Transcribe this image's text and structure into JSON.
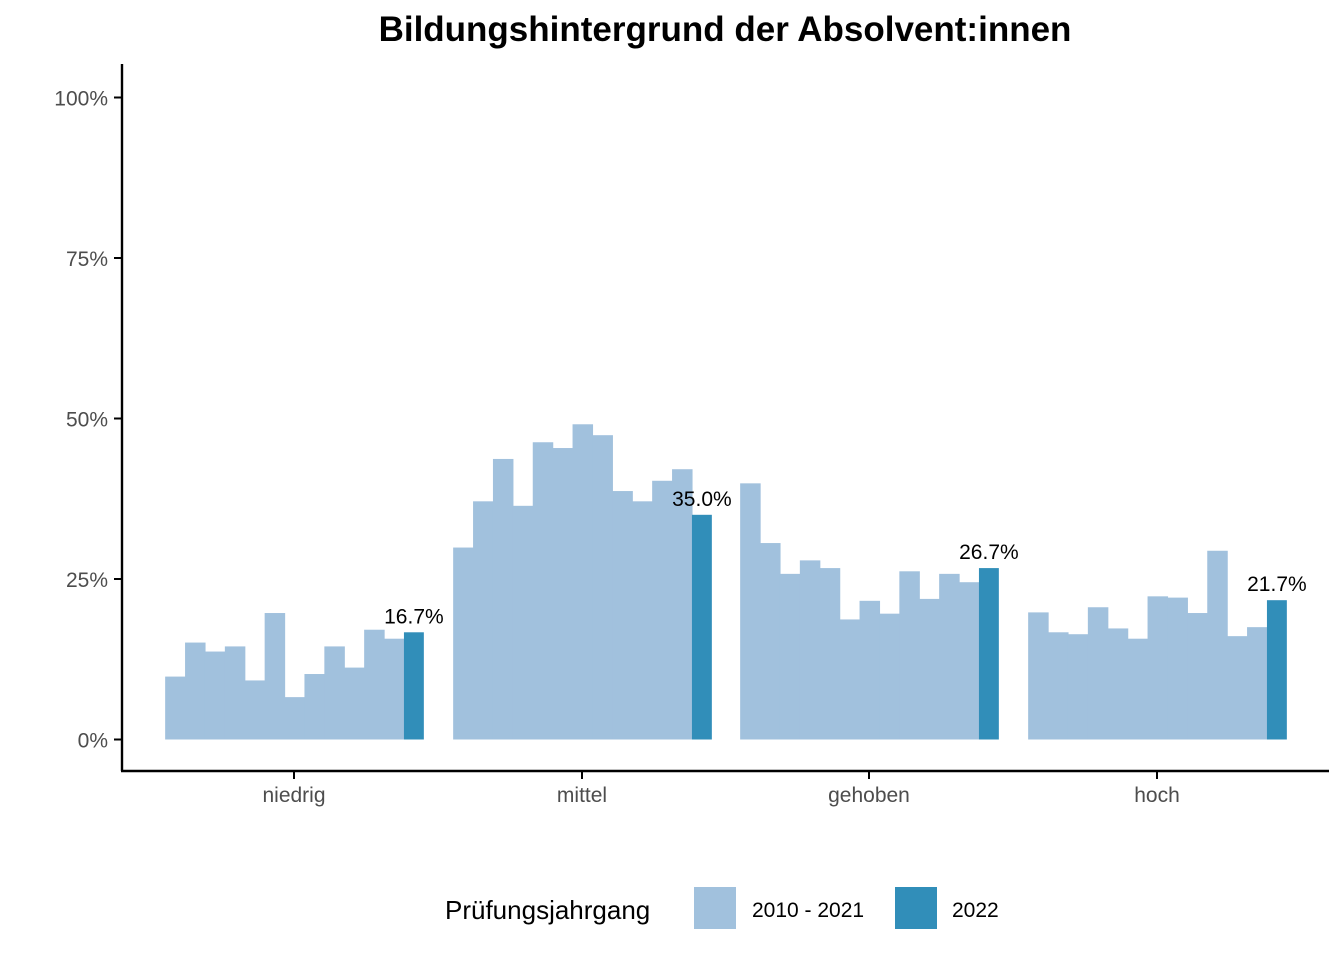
{
  "chart_data": {
    "type": "bar",
    "title": "Bildungshintergrund der Absolvent:innen",
    "xlabel": "",
    "ylabel": "",
    "categories": [
      "niedrig",
      "mittel",
      "gehoben",
      "hoch"
    ],
    "ylim": [
      0,
      1
    ],
    "yticks": [
      {
        "value": 0,
        "label": "0%"
      },
      {
        "value": 0.25,
        "label": "25%"
      },
      {
        "value": 0.5,
        "label": "50%"
      },
      {
        "value": 0.75,
        "label": "75%"
      },
      {
        "value": 1,
        "label": "100%"
      }
    ],
    "grid": false,
    "legend": {
      "title": "Prüfungsjahrgang",
      "position": "bottom",
      "entries": [
        {
          "label": "2010 - 2021",
          "color": "#a1c1dd"
        },
        {
          "label": "2022",
          "color": "#318eb9"
        }
      ]
    },
    "series": [
      {
        "name": "2010 - 2021",
        "color": "#a1c1dd",
        "values_by_category": [
          [
            0.098,
            0.151,
            0.137,
            0.145,
            0.092,
            0.197,
            0.066,
            0.102,
            0.145,
            0.112,
            0.171,
            0.157
          ],
          [
            0.299,
            0.371,
            0.437,
            0.364,
            0.463,
            0.454,
            0.491,
            0.474,
            0.387,
            0.371,
            0.403,
            0.421
          ],
          [
            0.399,
            0.306,
            0.258,
            0.279,
            0.267,
            0.187,
            0.216,
            0.196,
            0.262,
            0.219,
            0.258,
            0.245
          ],
          [
            0.198,
            0.167,
            0.164,
            0.206,
            0.173,
            0.157,
            0.223,
            0.221,
            0.197,
            0.294,
            0.161,
            0.175
          ]
        ]
      },
      {
        "name": "2022",
        "color": "#318eb9",
        "values": [
          0.167,
          0.35,
          0.267,
          0.217
        ],
        "labels": [
          "16.7%",
          "35.0%",
          "26.7%",
          "21.7%"
        ]
      }
    ]
  }
}
